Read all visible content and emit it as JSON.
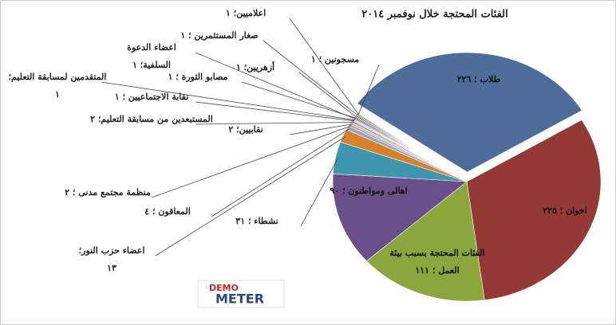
{
  "chart_data": {
    "type": "pie",
    "title": "الفئات المحتجة خلال نوفمبر ٢٠١٤",
    "categories": [
      "طلاب ؛ ٢٢٦",
      "اخوان ؛ ٢٢٥",
      "الفئات المحتجة بسبب بيئة\nالعمل ؛ ١١١",
      "اهالى ومواطنون ؛ ٩٠",
      "نشطاء ؛ ٣١",
      "اعضاء حزب النور؛\n١٣",
      "المعاقون ؛ ٤",
      "منظمة مجتمع مدنى ؛ ٢",
      "نقابيين؛ ٢",
      "المستبعدين من مسابقة التعليم؛ ٢",
      "نقابة الاجتماعيين ؛ ١",
      "المتقدمين لمسابقة التعليم؛\n١",
      "اعضاء الدعوة\nالسلفية؛ ١",
      "مصابو الثورة ؛ ١",
      "أزهريين؛ ١",
      "مسجونين ؛ ١",
      "صغار المستثمرين ؛ ١",
      "اعلاميين؛ ١"
    ],
    "values": [
      226,
      225,
      111,
      90,
      31,
      13,
      4,
      2,
      2,
      2,
      1,
      1,
      1,
      1,
      1,
      1,
      1,
      1
    ],
    "colors": [
      "#4f6d9a",
      "#943a35",
      "#8aa63c",
      "#6b4f8b",
      "#3f96ad",
      "#d9802c",
      "#8fa8d0",
      "#d08f8c",
      "#b8cc8a",
      "#a894c0",
      "#89c4d6",
      "#f2b27a",
      "#2f4a70",
      "#6b2420",
      "#5e7628",
      "#4a3463",
      "#2a6d80",
      "#a85c18"
    ]
  },
  "logo": {
    "line1": "DEMO",
    "line2": "METER"
  }
}
